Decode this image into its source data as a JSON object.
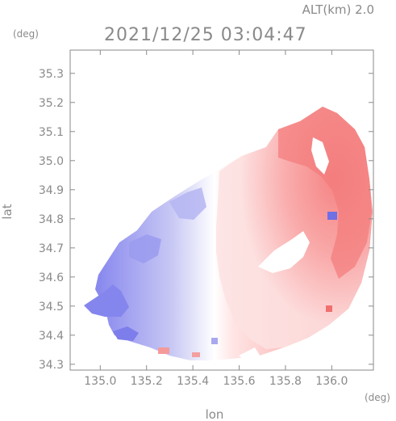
{
  "header": {
    "altitude_label": "ALT(km)  2.0",
    "timestamp": "2021/12/25 03:04:47"
  },
  "axes": {
    "y_unit": "(deg)",
    "x_unit": "(deg)",
    "y_label": "lat",
    "x_label": "lon",
    "x_ticks": [
      "135.0",
      "135.2",
      "135.4",
      "135.6",
      "135.8",
      "136.0"
    ],
    "y_ticks": [
      "34.3",
      "34.4",
      "34.5",
      "34.6",
      "34.7",
      "34.8",
      "34.9",
      "35.0",
      "35.1",
      "35.2",
      "35.3"
    ]
  },
  "map": {
    "lon_range": [
      134.87,
      136.18
    ],
    "lat_range": [
      34.28,
      35.38
    ],
    "colors": {
      "receding_strong": "#f47a7a",
      "receding_weak": "#fcd0d0",
      "approaching_strong": "#8585ee",
      "approaching_weak": "#d8d8f6",
      "frame": "#8a8a8a",
      "text": "#8a8a8a"
    }
  }
}
